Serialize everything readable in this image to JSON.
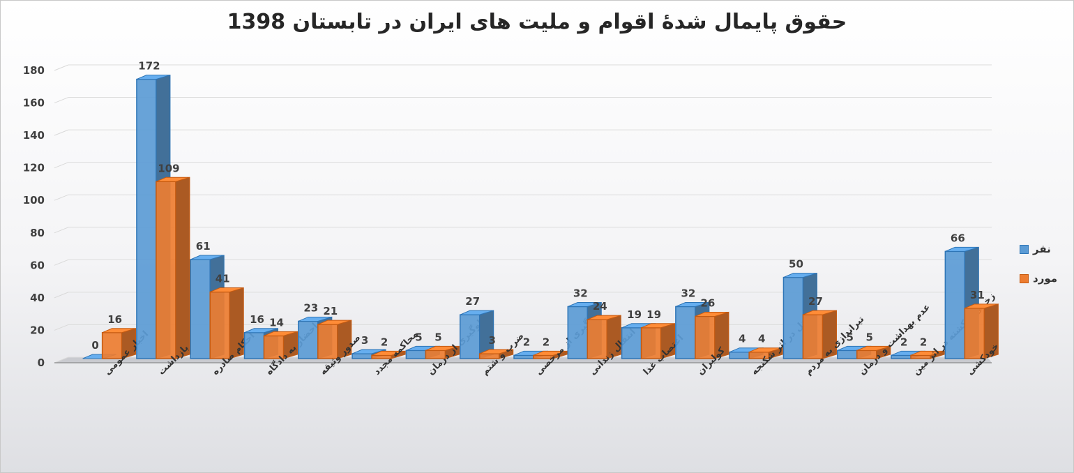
{
  "chart_data": {
    "type": "bar",
    "title": "حقوق پایمال شدۀ اقوام و ملیت های ایران در تابستان 1398",
    "categories": [
      "اخبار عمومی",
      "بازداشت",
      "احکام صادره",
      "احضار به دادگاه",
      "صدور وثیقه",
      "محاکمه مجدد",
      "جلوگیری از درمان",
      "ضرب و شتم",
      "جلوگیری از مرخصی",
      "انتقال زندانی",
      "اعتصاب غذا",
      "کولبران",
      "قتل در اثر شکنجه",
      "تیراندازی به مردم",
      "عدم بهداشت و درمان",
      "زخمی و کشته در اثر مین",
      "خودکشی"
    ],
    "series": [
      {
        "name": "نفر",
        "color": "#5b9bd5",
        "values": [
          0,
          172,
          61,
          16,
          23,
          3,
          5,
          27,
          2,
          32,
          19,
          32,
          4,
          50,
          5,
          2,
          66
        ]
      },
      {
        "name": "مورد",
        "color": "#ed7d31",
        "values": [
          16,
          109,
          41,
          14,
          21,
          2,
          5,
          3,
          2,
          24,
          19,
          26,
          4,
          27,
          5,
          2,
          31
        ]
      }
    ],
    "ylim": [
      0,
      180
    ],
    "yticks": [
      0,
      20,
      40,
      60,
      80,
      100,
      120,
      140,
      160,
      180
    ],
    "grid": true,
    "legend_position": "right"
  }
}
